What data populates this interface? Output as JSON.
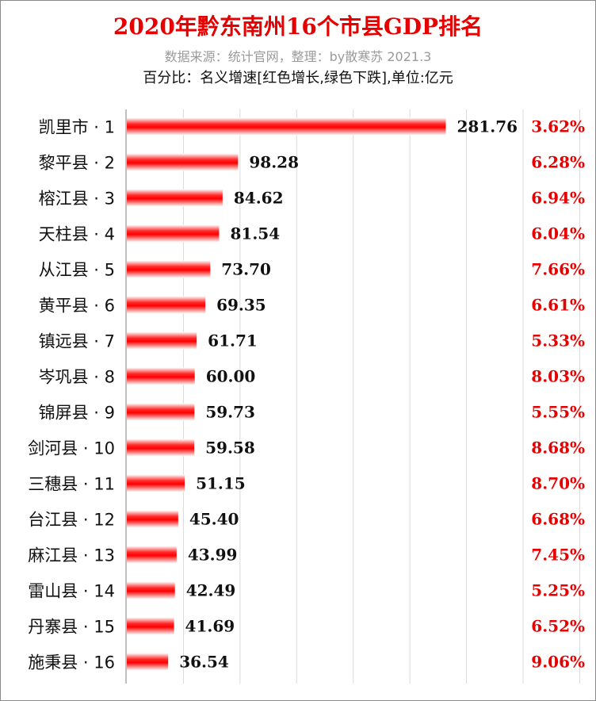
{
  "header": {
    "title": "2020年黔东南州16个市县GDP排名",
    "subtitle": "数据来源：统计官网，整理：by散寒苏 2021.3",
    "note": "百分比：名义增速[红色增长,绿色下跌],单位:亿元"
  },
  "colors": {
    "title": "#e60000",
    "bar": "#ff0000",
    "growth_up": "#e60000",
    "growth_down": "#00a000",
    "grid": "#d9d9d9"
  },
  "chart_data": {
    "type": "bar",
    "orientation": "horizontal",
    "title": "2020年黔东南州16个市县GDP排名",
    "categories": [
      "凯里市 · 1",
      "黎平县 · 2",
      "榕江县 · 3",
      "天柱县 · 4",
      "从江县 · 5",
      "黄平县 · 6",
      "镇远县 · 7",
      "岑巩县 · 8",
      "锦屏县 · 9",
      "剑河县 · 10",
      "三穗县 · 11",
      "台江县 · 12",
      "麻江县 · 13",
      "雷山县 · 14",
      "丹寨县 · 15",
      "施秉县 · 16"
    ],
    "values": [
      281.76,
      98.28,
      84.62,
      81.54,
      73.7,
      69.35,
      61.71,
      60.0,
      59.73,
      59.58,
      51.15,
      45.4,
      43.99,
      42.49,
      41.69,
      36.54
    ],
    "value_labels": [
      "281.76",
      "98.28",
      "84.62",
      "81.54",
      "73.70",
      "69.35",
      "61.71",
      "60.00",
      "59.73",
      "59.58",
      "51.15",
      "45.40",
      "43.99",
      "42.49",
      "41.69",
      "36.54"
    ],
    "growth": [
      "3.62%",
      "6.28%",
      "6.94%",
      "6.04%",
      "7.66%",
      "6.61%",
      "5.33%",
      "8.03%",
      "5.55%",
      "8.68%",
      "8.70%",
      "6.68%",
      "7.45%",
      "5.25%",
      "6.52%",
      "9.06%"
    ],
    "xlim": [
      0,
      420
    ],
    "grid": true,
    "legend": "none"
  }
}
